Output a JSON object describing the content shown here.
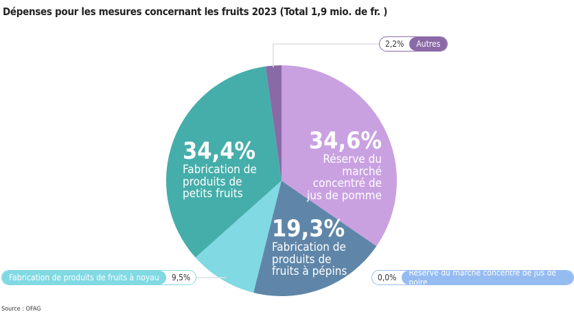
{
  "title": "Dépenses pour les mesures concernant les fruits 2023 (Total 1,9 mio. de fr. )",
  "source": "Source : OFAG",
  "chart_data": {
    "type": "pie",
    "start": "12 o'clock, clockwise",
    "slices": [
      {
        "label": "Réserve du marché concentré de jus de pomme",
        "value": 34.6,
        "text": "34,6%",
        "color": "#c9a1e1"
      },
      {
        "label": "Fabrication de produits de fruits à pépins",
        "value": 19.3,
        "text": "19,3%",
        "color": "#5f86a8"
      },
      {
        "label": "Réserve du marché concentré de jus de poire",
        "value": 0.0,
        "text": "0,0%",
        "color": "#95bcf0"
      },
      {
        "label": "Fabrication de produits de fruits à noyau",
        "value": 9.5,
        "text": "9,5%",
        "color": "#80d9e3"
      },
      {
        "label": "Fabrication de produits de petits fruits",
        "value": 34.4,
        "text": "34,4%",
        "color": "#45aeaa"
      },
      {
        "label": "Autres",
        "value": 2.2,
        "text": "2,2%",
        "color": "#8a6aa6"
      }
    ]
  }
}
